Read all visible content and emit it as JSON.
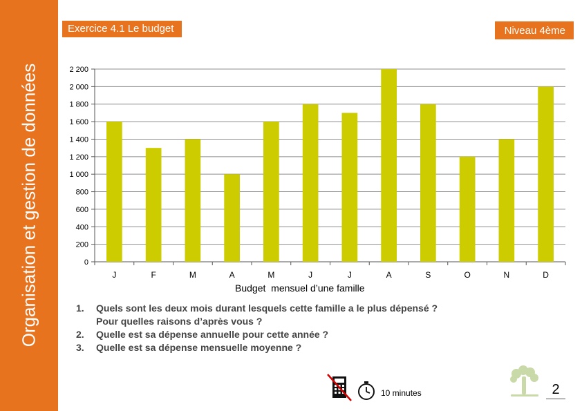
{
  "sidebar": {
    "title": "Organisation et gestion de données"
  },
  "header": {
    "exercise_title": "Exercice 4.1 Le budget",
    "level": "Niveau 4ème"
  },
  "colors": {
    "accent": "#e8731e",
    "bar": "#cccc00"
  },
  "chart_data": {
    "type": "bar",
    "categories": [
      "J",
      "F",
      "M",
      "A",
      "M",
      "J",
      "J",
      "A",
      "S",
      "O",
      "N",
      "D"
    ],
    "values": [
      1600,
      1300,
      1400,
      1000,
      1600,
      1800,
      1700,
      2200,
      1800,
      1200,
      1400,
      2000
    ],
    "yticks": [
      "0",
      "200",
      "400",
      "600",
      "800",
      "1 000",
      "1 200",
      "1 400",
      "1 600",
      "1 800",
      "2 000",
      "2 200"
    ],
    "ylim": [
      0,
      2200
    ],
    "xlabel": "Budget  mensuel d’une famille",
    "ylabel": "",
    "title": "",
    "grid": true,
    "legend": "none"
  },
  "questions": [
    {
      "num": "1.",
      "text": "Quels sont les deux mois durant lesquels cette famille a le plus dépensé ?"
    },
    {
      "num": "",
      "text": "Pour quelles raisons d’après vous ?"
    },
    {
      "num": "2.",
      "text": "Quelle est sa dépense annuelle pour cette année ?"
    },
    {
      "num": "3.",
      "text": "Quelle est sa dépense mensuelle moyenne ?"
    }
  ],
  "footer": {
    "no_calculator_icon": "no-calculator-icon",
    "timer_icon": "stopwatch-icon",
    "duration": "10 minutes",
    "logo_icon": "tree-logo-icon",
    "page_number": "2"
  }
}
